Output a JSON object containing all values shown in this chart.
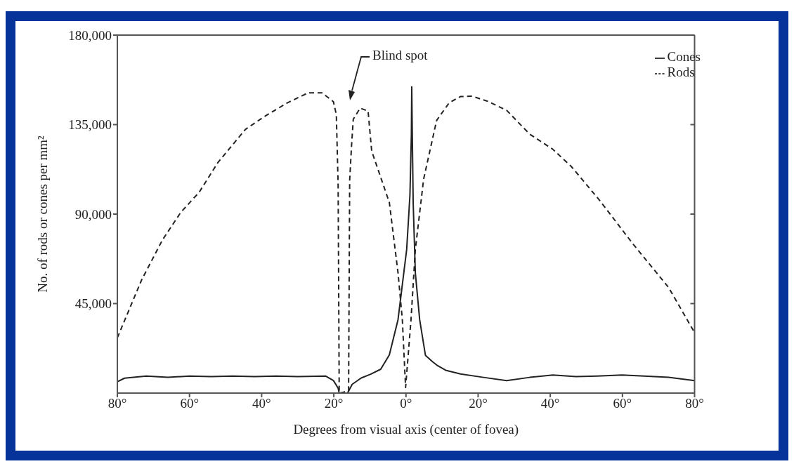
{
  "chart_data": {
    "type": "line",
    "xlabel": "Degrees from visual axis (center of fovea)",
    "ylabel": "No. of rods or cones per mm²",
    "xlim": [
      -80,
      80
    ],
    "xticks": [
      {
        "value": -80,
        "label": "80°"
      },
      {
        "value": -60,
        "label": "60°"
      },
      {
        "value": -40,
        "label": "40°"
      },
      {
        "value": -20,
        "label": "20°"
      },
      {
        "value": 0,
        "label": "0°"
      },
      {
        "value": 20,
        "label": "20°"
      },
      {
        "value": 40,
        "label": "40°"
      },
      {
        "value": 60,
        "label": "60°"
      },
      {
        "value": 80,
        "label": "80°"
      }
    ],
    "ylim": [
      0,
      180000
    ],
    "yticks": [
      {
        "value": 45000,
        "label": "45,000"
      },
      {
        "value": 90000,
        "label": "90,000"
      },
      {
        "value": 135000,
        "label": "135,000"
      },
      {
        "value": 180000,
        "label": "180,000"
      }
    ],
    "legend": "top right",
    "marker": "none",
    "annotations": [
      "Blind spot"
    ],
    "series": [
      {
        "name": "Cones",
        "color": "#222222",
        "line_style": "solid",
        "x": [
          -80,
          -78,
          -72,
          -66,
          -60,
          -54,
          -48,
          -42,
          -36,
          -30,
          -22.3,
          -20.1,
          -18.8,
          -18.5,
          -16.2,
          -14.9,
          -12.4,
          -9.8,
          -7,
          -4.6,
          -2.2,
          0.2,
          1.1,
          1.5,
          1.6,
          2,
          2.6,
          3.8,
          5.4,
          7.4,
          8.6,
          11,
          15.1,
          21.5,
          27.9,
          34.3,
          40.7,
          47.1,
          53,
          59.9,
          66,
          72.8,
          80
        ],
        "values": [
          5700,
          7500,
          8600,
          7900,
          8600,
          8300,
          8600,
          8300,
          8600,
          8300,
          8600,
          6300,
          2500,
          0,
          0,
          4400,
          7600,
          9500,
          12000,
          19200,
          36900,
          72200,
          99400,
          130000,
          154000,
          95800,
          60500,
          36900,
          19000,
          15700,
          14000,
          11500,
          9600,
          7900,
          6300,
          7900,
          9100,
          8300,
          8600,
          9100,
          8600,
          7900,
          6300
        ]
      },
      {
        "name": "Rods",
        "color": "#222222",
        "line_style": "dashed",
        "x": [
          -80,
          -73.3,
          -67.5,
          -62.4,
          -57.3,
          -52.1,
          -44.5,
          -39.3,
          -32.9,
          -27.1,
          -23.3,
          -20.1,
          -19.3,
          -18.8,
          -18.5,
          -15.9,
          -15.6,
          -15.1,
          -14.6,
          -12.7,
          -10.5,
          -9.5,
          -4.6,
          -2.2,
          -1,
          -0.1,
          1.4,
          2.6,
          4.9,
          8.5,
          12,
          15.1,
          18.3,
          22.7,
          27.9,
          34.3,
          40.7,
          45.9,
          53.5,
          63.1,
          72.8,
          80
        ],
        "values": [
          27800,
          56800,
          77000,
          90900,
          101000,
          116000,
          132600,
          139000,
          145900,
          151000,
          151000,
          146500,
          140000,
          104800,
          0,
          1000,
          107000,
          123800,
          137700,
          143300,
          141800,
          121700,
          95800,
          60500,
          36900,
          2800,
          36900,
          72200,
          107600,
          137100,
          146000,
          149100,
          149300,
          146700,
          142200,
          130200,
          122600,
          113800,
          97300,
          74600,
          53100,
          30400
        ]
      }
    ]
  }
}
